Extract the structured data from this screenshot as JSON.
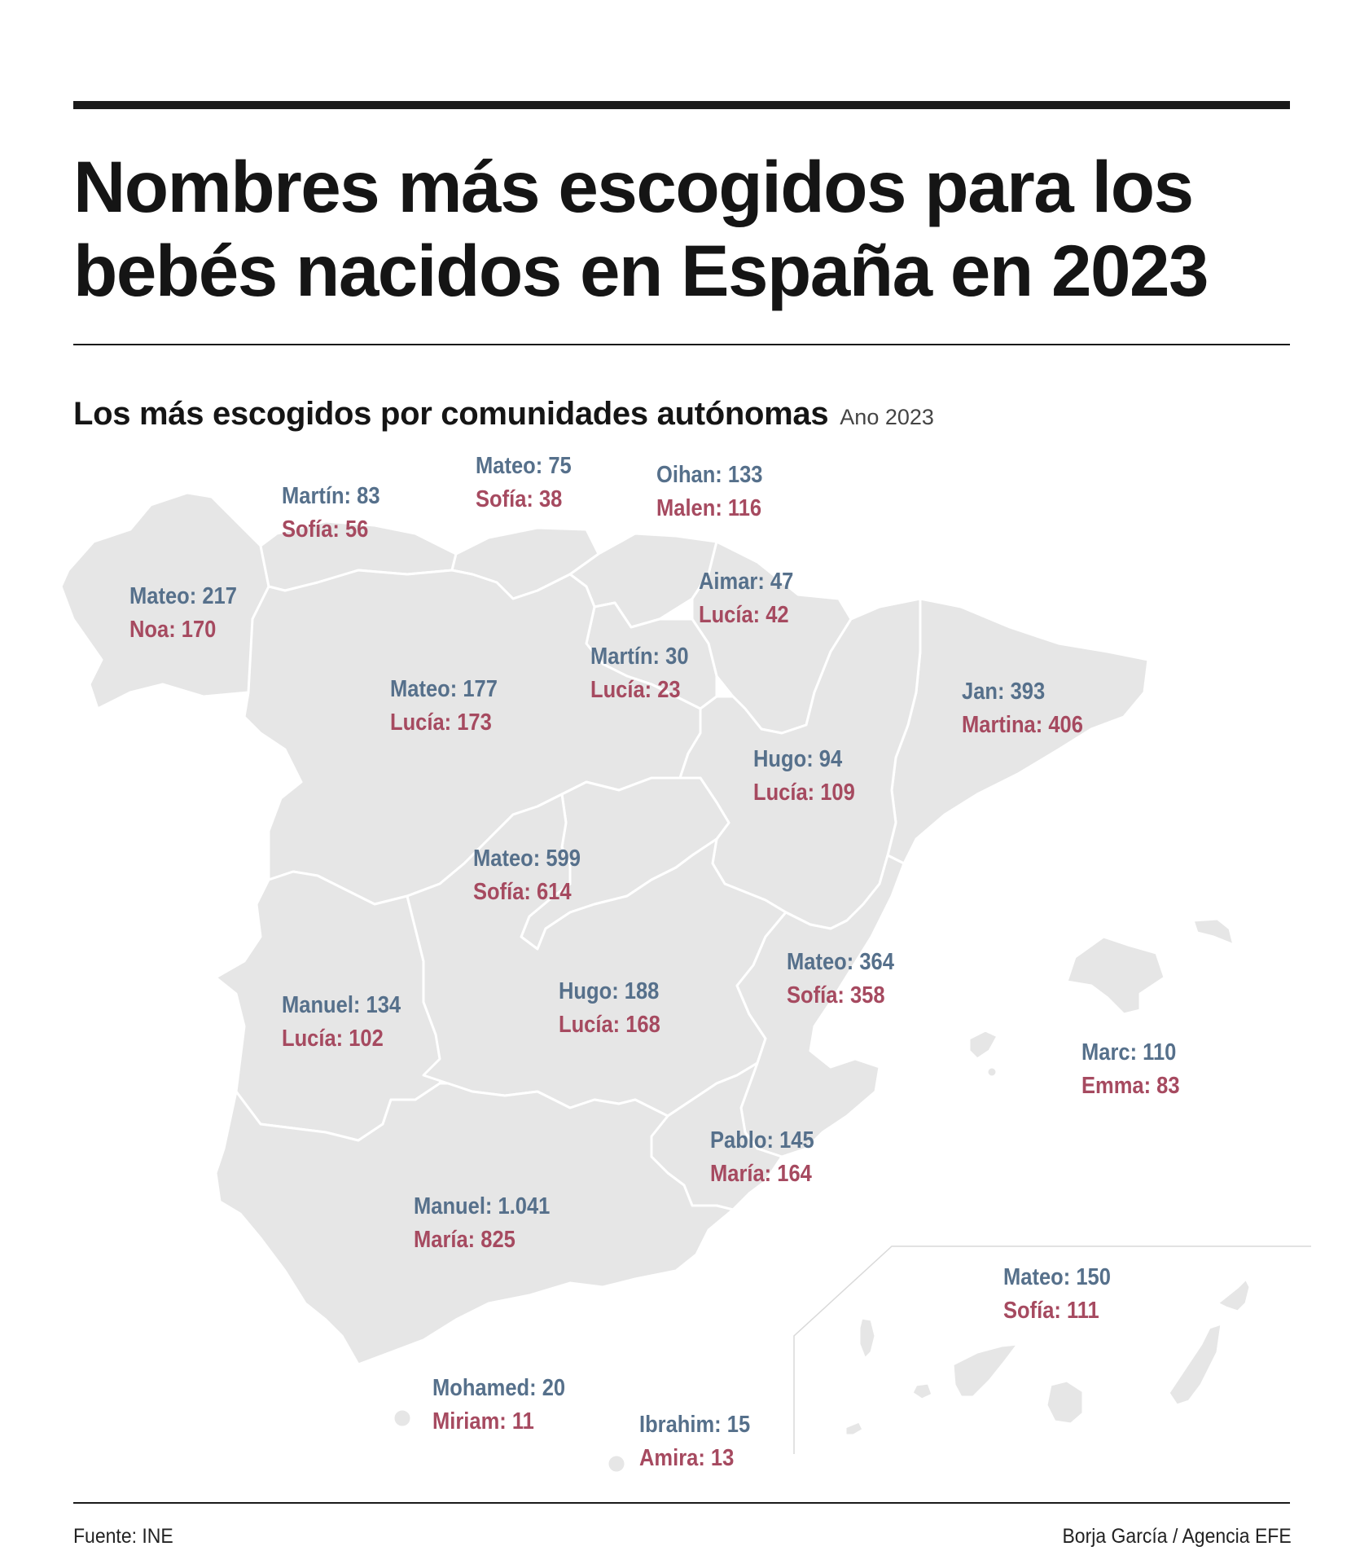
{
  "title": "Nombres más escogidos para los bebés nacidos en España en 2023",
  "subtitle": "Los más escogidos por comunidades autónomas",
  "year_note": "Ano 2023",
  "colors": {
    "boy": "#56708b",
    "girl": "#a64a60",
    "region_fill": "#e6e6e6",
    "region_border": "#ffffff",
    "rule": "#1a1a1a"
  },
  "regions": [
    {
      "id": "galicia",
      "boy": "Mateo: 217",
      "girl": "Noa: 170"
    },
    {
      "id": "asturias",
      "boy": "Martín: 83",
      "girl": "Sofía: 56"
    },
    {
      "id": "cantabria",
      "boy": "Mateo: 75",
      "girl": "Sofía: 38"
    },
    {
      "id": "pais-vasco",
      "boy": "Oihan: 133",
      "girl": "Malen: 116"
    },
    {
      "id": "navarra",
      "boy": "Aimar: 47",
      "girl": "Lucía: 42"
    },
    {
      "id": "la-rioja",
      "boy": "Martín: 30",
      "girl": "Lucía: 23"
    },
    {
      "id": "castilla-y-leon",
      "boy": "Mateo: 177",
      "girl": "Lucía: 173"
    },
    {
      "id": "cataluna",
      "boy": "Jan: 393",
      "girl": "Martina: 406"
    },
    {
      "id": "aragon",
      "boy": "Hugo: 94",
      "girl": "Lucía: 109"
    },
    {
      "id": "madrid",
      "boy": "Mateo: 599",
      "girl": "Sofía: 614"
    },
    {
      "id": "valencia",
      "boy": "Mateo: 364",
      "girl": "Sofía: 358"
    },
    {
      "id": "extremadura",
      "boy": "Manuel: 134",
      "girl": "Lucía: 102"
    },
    {
      "id": "castilla-la-mancha",
      "boy": "Hugo: 188",
      "girl": "Lucía: 168"
    },
    {
      "id": "baleares",
      "boy": "Marc: 110",
      "girl": "Emma: 83"
    },
    {
      "id": "murcia",
      "boy": "Pablo: 145",
      "girl": "María: 164"
    },
    {
      "id": "andalucia",
      "boy": "Manuel: 1.041",
      "girl": "María: 825"
    },
    {
      "id": "canarias",
      "boy": "Mateo: 150",
      "girl": "Sofía: 111"
    },
    {
      "id": "ceuta",
      "boy": "Mohamed: 20",
      "girl": "Miriam: 11"
    },
    {
      "id": "melilla",
      "boy": "Ibrahim: 15",
      "girl": "Amira: 13"
    }
  ],
  "source": "Fuente: INE",
  "credit": "Borja García / Agencia EFE"
}
